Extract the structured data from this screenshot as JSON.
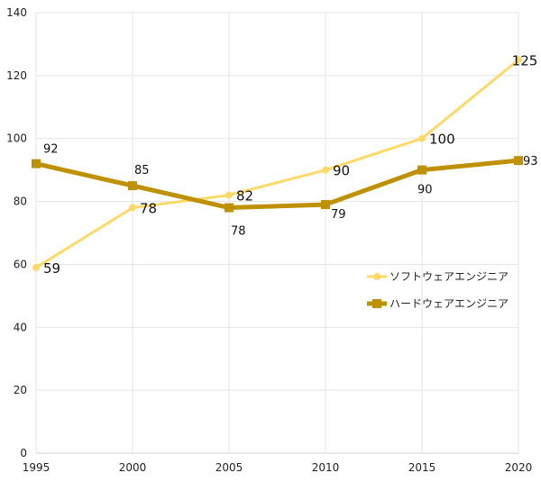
{
  "chart_data": {
    "type": "line",
    "x": [
      1995,
      2000,
      2005,
      2010,
      2015,
      2020
    ],
    "ylim": [
      0,
      140
    ],
    "yticks": [
      0,
      20,
      40,
      60,
      80,
      100,
      120,
      140
    ],
    "grid": true,
    "legend_position": "right",
    "series": [
      {
        "name": "ソフトウェアエンジニア",
        "values": [
          59,
          78,
          82,
          90,
          100,
          125
        ],
        "color": "#FFD966",
        "marker": "circle"
      },
      {
        "name": "ハードウェアエンジニア",
        "values": [
          92,
          85,
          78,
          79,
          90,
          93
        ],
        "color": "#BF9000",
        "marker": "square"
      }
    ]
  }
}
